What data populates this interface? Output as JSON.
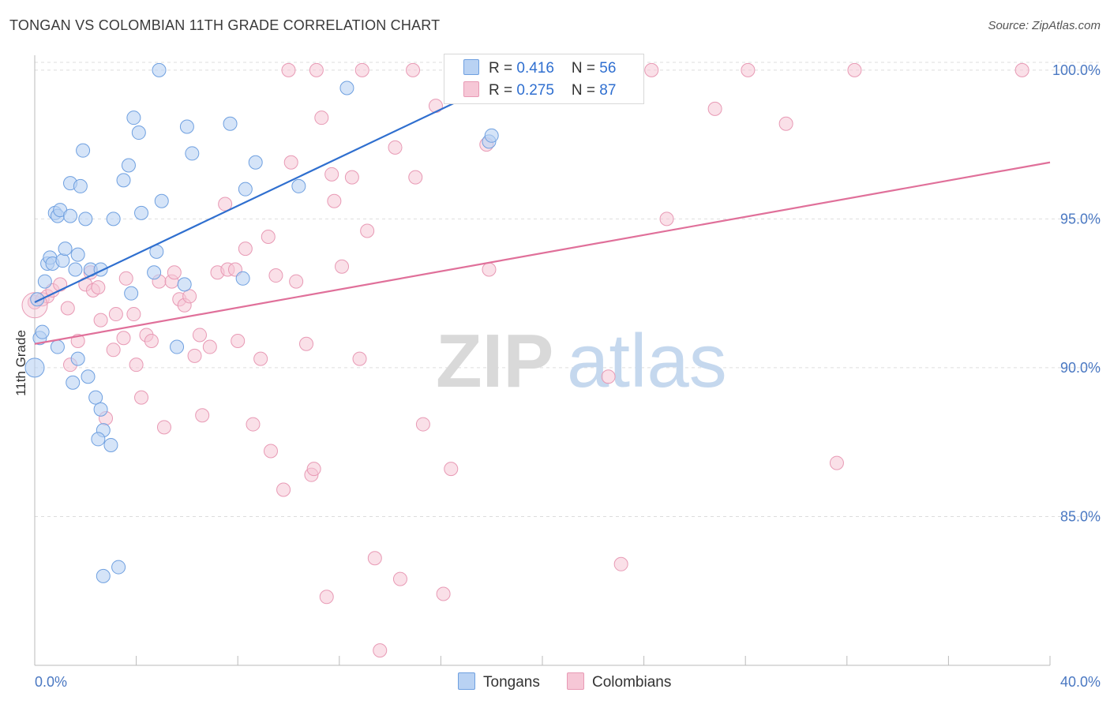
{
  "title": "TONGAN VS COLOMBIAN 11TH GRADE CORRELATION CHART",
  "source": "Source: ZipAtlas.com",
  "legend": {
    "series1": {
      "r_label": "R = ",
      "r_value": "0.416",
      "n_label": "N = ",
      "n_value": "56"
    },
    "series2": {
      "r_label": "R = ",
      "r_value": "0.275",
      "n_label": "N = ",
      "n_value": "87"
    }
  },
  "bottom_legend": [
    "Tongans",
    "Colombians"
  ],
  "watermark": {
    "part1": "ZIP",
    "part2": "atlas"
  },
  "colors": {
    "tongan": "#6fa0e0",
    "tongan_fill": "#b9d2f3",
    "tongan_line": "#2f6fcf",
    "colombian": "#e89ab5",
    "colombian_fill": "#f6c7d6",
    "colombian_line": "#e0709a",
    "axis_label": "#4a78c2",
    "grid": "#dddddd"
  },
  "chart_data": {
    "type": "scatter",
    "title": "TONGAN VS COLOMBIAN 11TH GRADE CORRELATION CHART",
    "xlabel": "",
    "ylabel": "11th Grade",
    "xlim": [
      0.0,
      40.0
    ],
    "ylim": [
      80.0,
      100.5
    ],
    "x_tick_labels": [
      "0.0%",
      "40.0%"
    ],
    "y_ticks": [
      85.0,
      90.0,
      95.0,
      100.0
    ],
    "y_tick_labels": [
      "85.0%",
      "90.0%",
      "95.0%",
      "100.0%"
    ],
    "grid": true,
    "legend_position": "top-center",
    "series": [
      {
        "name": "Tongans",
        "trend": {
          "x": [
            0.0,
            20.0
          ],
          "y": [
            92.2,
            100.3
          ]
        },
        "points": [
          [
            0.0,
            90.0
          ],
          [
            0.2,
            91.0
          ],
          [
            0.3,
            91.2
          ],
          [
            0.4,
            92.9
          ],
          [
            0.5,
            93.5
          ],
          [
            0.6,
            93.7
          ],
          [
            0.7,
            93.5
          ],
          [
            0.8,
            95.2
          ],
          [
            0.9,
            95.1
          ],
          [
            1.0,
            95.3
          ],
          [
            1.1,
            93.6
          ],
          [
            1.2,
            94.0
          ],
          [
            1.4,
            95.1
          ],
          [
            1.4,
            96.2
          ],
          [
            1.6,
            93.3
          ],
          [
            1.7,
            93.8
          ],
          [
            1.8,
            96.1
          ],
          [
            1.9,
            97.3
          ],
          [
            2.0,
            95.0
          ],
          [
            0.9,
            90.7
          ],
          [
            1.5,
            89.5
          ],
          [
            1.7,
            90.3
          ],
          [
            2.1,
            89.7
          ],
          [
            2.4,
            89.0
          ],
          [
            2.6,
            88.6
          ],
          [
            2.7,
            87.9
          ],
          [
            2.5,
            87.6
          ],
          [
            3.0,
            87.4
          ],
          [
            2.2,
            93.3
          ],
          [
            2.6,
            93.3
          ],
          [
            3.1,
            95.0
          ],
          [
            3.5,
            96.3
          ],
          [
            3.7,
            96.8
          ],
          [
            3.9,
            98.4
          ],
          [
            4.1,
            97.9
          ],
          [
            4.2,
            95.2
          ],
          [
            3.8,
            92.5
          ],
          [
            4.7,
            93.2
          ],
          [
            4.8,
            93.9
          ],
          [
            5.0,
            95.6
          ],
          [
            4.9,
            100.0
          ],
          [
            5.6,
            90.7
          ],
          [
            5.9,
            92.8
          ],
          [
            6.0,
            98.1
          ],
          [
            6.2,
            97.2
          ],
          [
            7.7,
            98.2
          ],
          [
            8.2,
            93.0
          ],
          [
            8.3,
            96.0
          ],
          [
            8.7,
            96.9
          ],
          [
            10.4,
            96.1
          ],
          [
            12.3,
            99.4
          ],
          [
            17.9,
            97.6
          ],
          [
            18.0,
            97.8
          ],
          [
            3.3,
            83.3
          ],
          [
            2.7,
            83.0
          ],
          [
            0.1,
            92.3
          ]
        ]
      },
      {
        "name": "Colombians",
        "trend": {
          "x": [
            0.0,
            40.0
          ],
          "y": [
            90.8,
            96.9
          ]
        },
        "points": [
          [
            0.0,
            92.2
          ],
          [
            0.3,
            92.3
          ],
          [
            0.5,
            92.4
          ],
          [
            0.7,
            92.6
          ],
          [
            1.0,
            92.8
          ],
          [
            1.3,
            92.0
          ],
          [
            1.4,
            90.1
          ],
          [
            1.7,
            90.9
          ],
          [
            2.0,
            92.8
          ],
          [
            2.3,
            92.6
          ],
          [
            2.5,
            92.7
          ],
          [
            2.6,
            91.6
          ],
          [
            2.8,
            88.3
          ],
          [
            3.1,
            90.6
          ],
          [
            3.2,
            91.8
          ],
          [
            3.5,
            91.0
          ],
          [
            3.6,
            93.0
          ],
          [
            3.9,
            91.8
          ],
          [
            4.0,
            90.1
          ],
          [
            4.2,
            89.0
          ],
          [
            4.4,
            91.1
          ],
          [
            4.6,
            90.9
          ],
          [
            4.9,
            92.9
          ],
          [
            5.1,
            88.0
          ],
          [
            5.4,
            92.9
          ],
          [
            5.5,
            93.2
          ],
          [
            5.7,
            92.3
          ],
          [
            5.9,
            92.1
          ],
          [
            6.1,
            92.4
          ],
          [
            6.3,
            90.4
          ],
          [
            6.5,
            91.1
          ],
          [
            6.6,
            88.4
          ],
          [
            6.9,
            90.7
          ],
          [
            7.2,
            93.2
          ],
          [
            7.5,
            95.5
          ],
          [
            7.6,
            93.3
          ],
          [
            7.9,
            93.3
          ],
          [
            8.0,
            90.9
          ],
          [
            8.3,
            94.0
          ],
          [
            8.6,
            88.1
          ],
          [
            8.9,
            90.3
          ],
          [
            9.2,
            94.4
          ],
          [
            9.3,
            87.2
          ],
          [
            9.5,
            93.1
          ],
          [
            9.8,
            85.9
          ],
          [
            10.1,
            96.9
          ],
          [
            10.3,
            92.9
          ],
          [
            10.7,
            90.8
          ],
          [
            10.9,
            86.4
          ],
          [
            11.0,
            86.6
          ],
          [
            11.3,
            98.4
          ],
          [
            11.7,
            96.5
          ],
          [
            11.8,
            95.6
          ],
          [
            12.1,
            93.4
          ],
          [
            12.5,
            96.4
          ],
          [
            12.8,
            90.3
          ],
          [
            13.1,
            94.6
          ],
          [
            13.4,
            83.6
          ],
          [
            13.6,
            80.5
          ],
          [
            14.2,
            97.4
          ],
          [
            14.4,
            82.9
          ],
          [
            14.9,
            100.0
          ],
          [
            15.0,
            96.4
          ],
          [
            15.3,
            88.1
          ],
          [
            15.8,
            98.8
          ],
          [
            16.1,
            82.4
          ],
          [
            16.4,
            86.6
          ],
          [
            17.8,
            97.5
          ],
          [
            17.9,
            93.3
          ],
          [
            18.3,
            100.0
          ],
          [
            19.6,
            100.0
          ],
          [
            20.4,
            100.0
          ],
          [
            22.6,
            89.7
          ],
          [
            23.1,
            83.4
          ],
          [
            24.3,
            100.0
          ],
          [
            24.9,
            95.0
          ],
          [
            26.8,
            98.7
          ],
          [
            28.1,
            100.0
          ],
          [
            29.6,
            98.2
          ],
          [
            31.6,
            86.8
          ],
          [
            32.3,
            100.0
          ],
          [
            38.9,
            100.0
          ],
          [
            10.0,
            100.0
          ],
          [
            11.1,
            100.0
          ],
          [
            11.5,
            82.3
          ],
          [
            12.9,
            100.0
          ],
          [
            2.2,
            93.2
          ]
        ]
      }
    ]
  }
}
